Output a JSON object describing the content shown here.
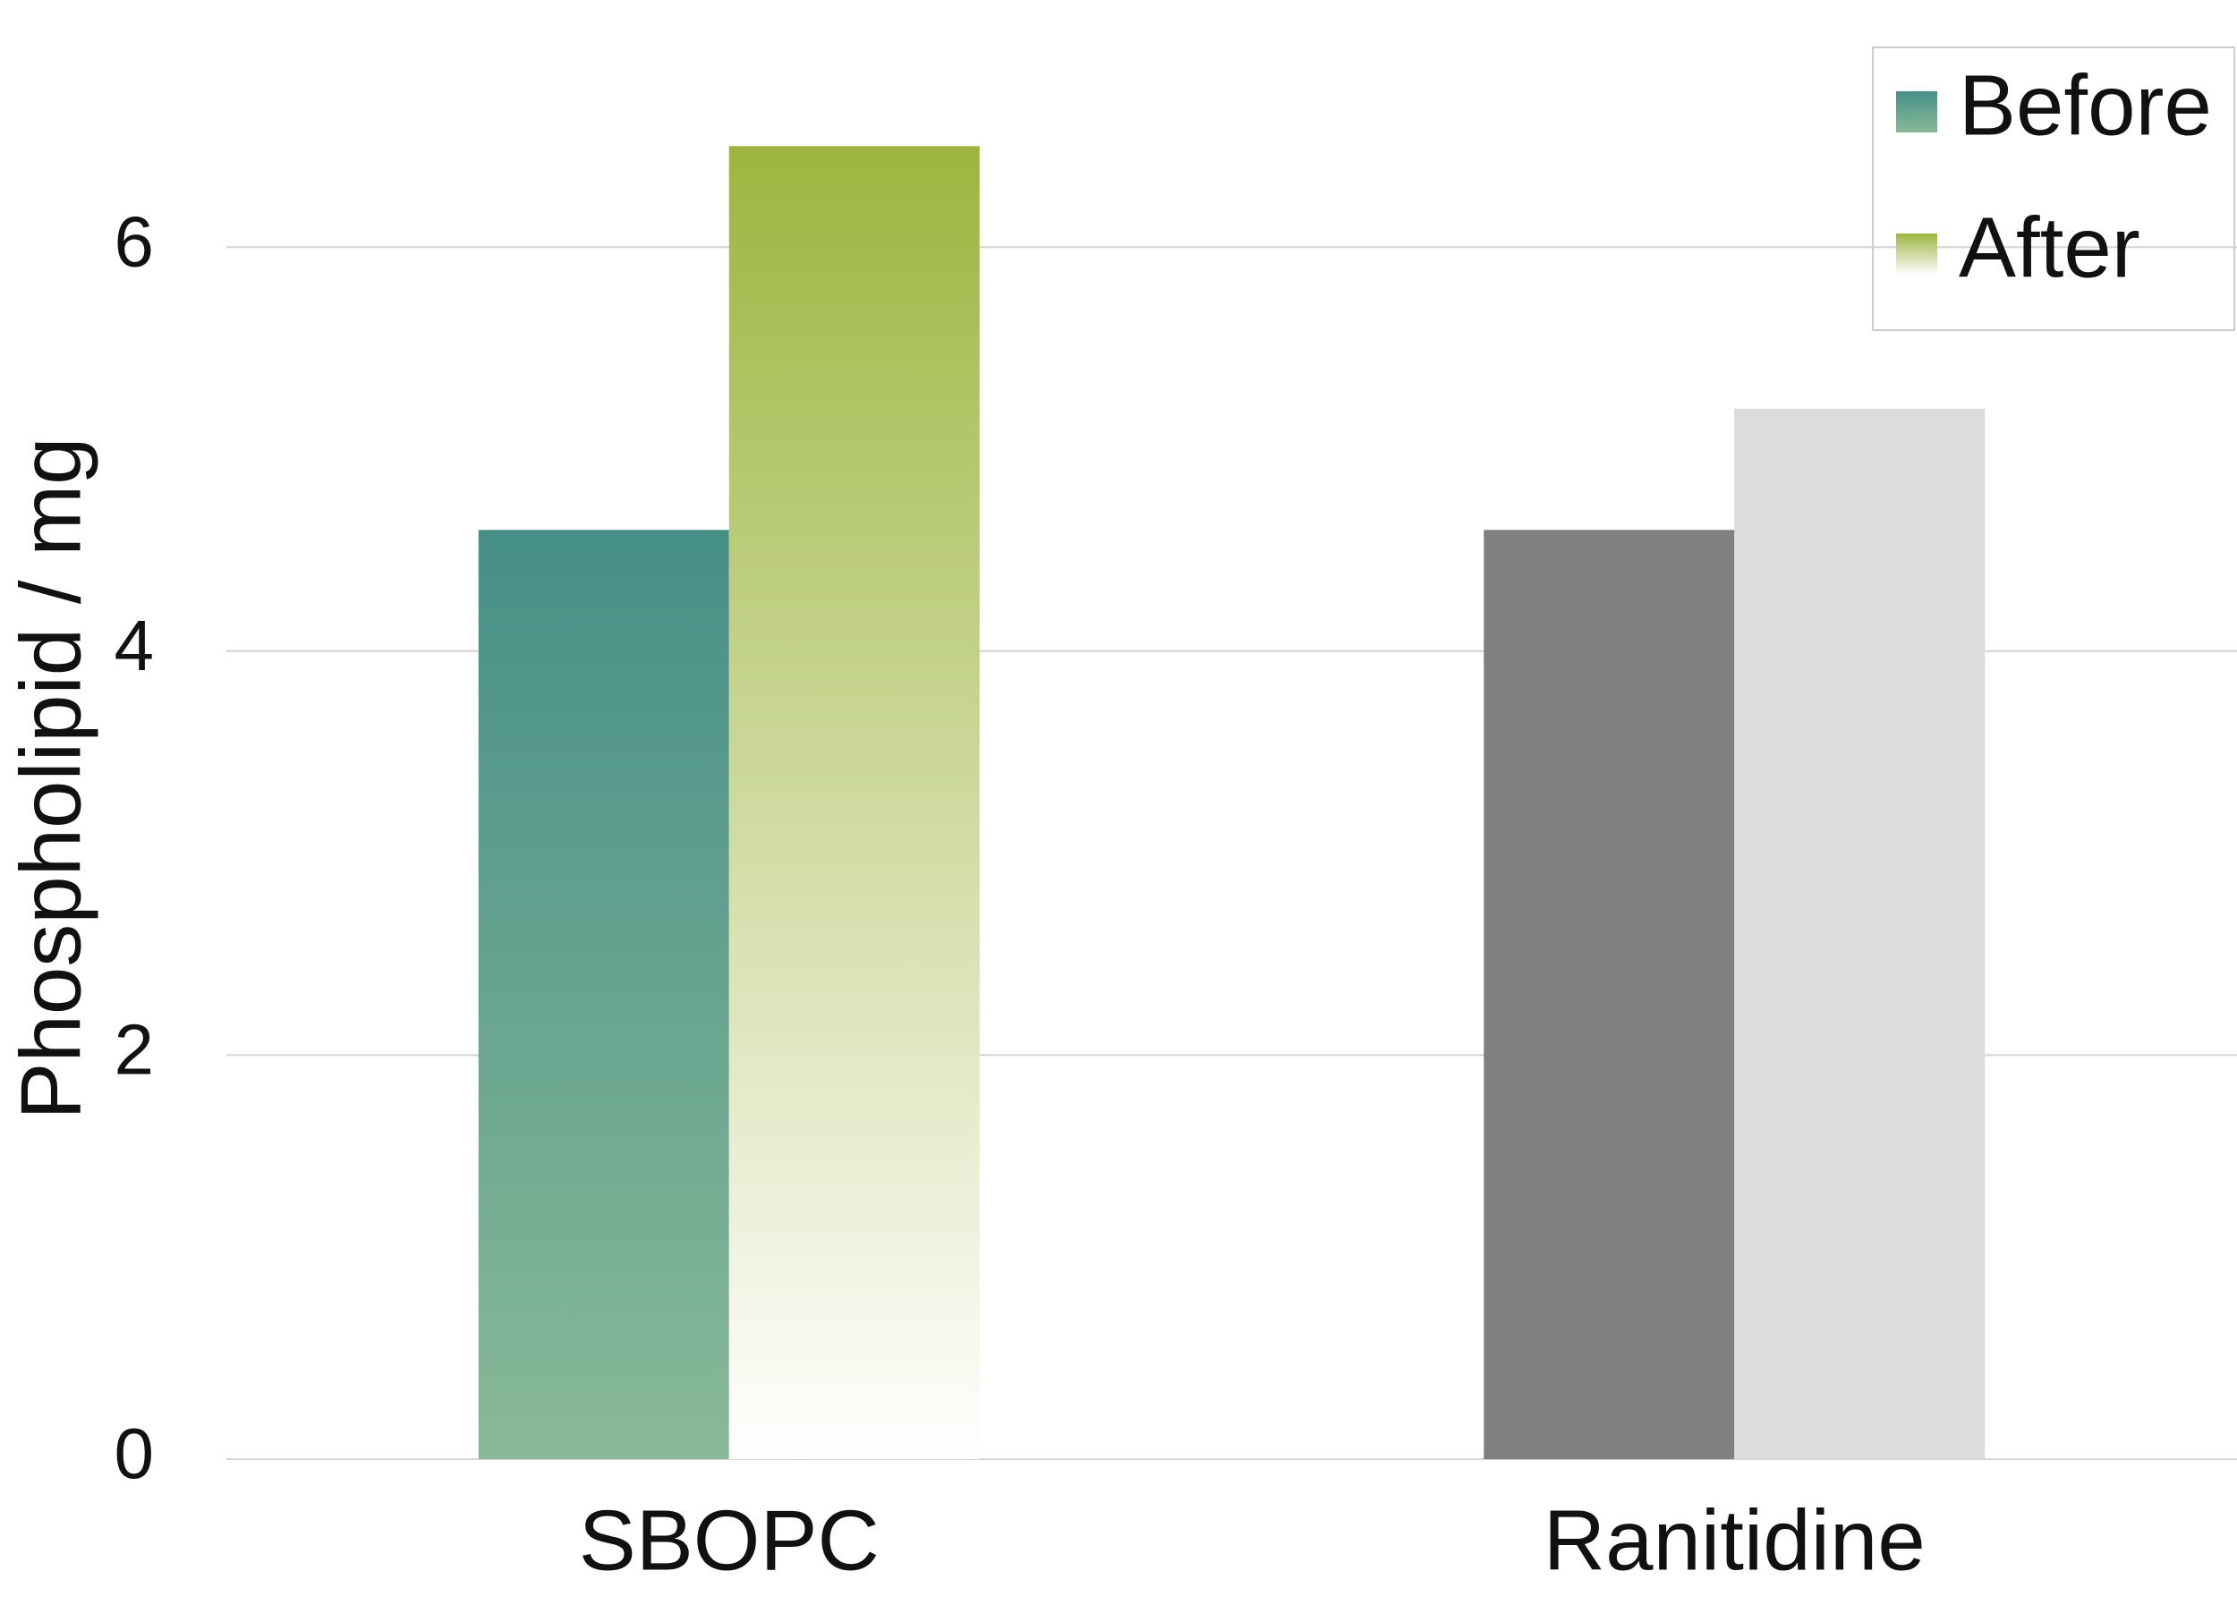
{
  "chart_data": {
    "type": "bar",
    "y_label": "Phospholipid / mg",
    "categories": [
      "SBOPC",
      "Ranitidine"
    ],
    "series": [
      {
        "name": "Before",
        "color": "#468f87",
        "gradient_to": "#88b998",
        "point_colors": [
          null,
          "#808080"
        ],
        "values": [
          4.6,
          4.6
        ]
      },
      {
        "name": "After",
        "color": "#9db53f",
        "gradient_to": "#ffffff",
        "point_colors": [
          null,
          "#dcdcdd"
        ],
        "values": [
          6.5,
          5.2
        ]
      }
    ],
    "ylim": [
      0,
      7
    ],
    "yticks": [
      0,
      2,
      4,
      6
    ],
    "grid": true,
    "legend": "top-right"
  }
}
